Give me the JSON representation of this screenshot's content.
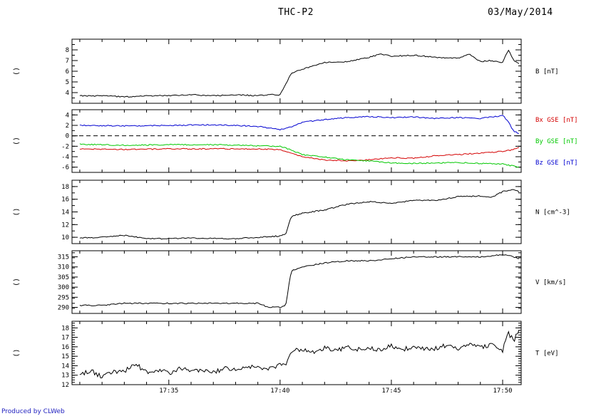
{
  "header": {
    "title": "THC-P2",
    "date": "03/May/2014"
  },
  "credit": "Produced by CLWeb",
  "chart_data": [
    {
      "type": "line",
      "panel": "B",
      "ylabel_right": "B [nT]",
      "left_label": "()",
      "ylim": [
        3,
        9
      ],
      "yticks": [
        4,
        5,
        6,
        7,
        8
      ],
      "hline": null,
      "series": [
        {
          "color": "#000000",
          "x": [
            "17:31",
            "17:32",
            "17:33",
            "17:34",
            "17:35",
            "17:36",
            "17:37",
            "17:38",
            "17:39",
            "17:39:30",
            "17:40",
            "17:40:15",
            "17:40:30",
            "17:41",
            "17:42",
            "17:43",
            "17:44",
            "17:44:30",
            "17:45",
            "17:46",
            "17:47",
            "17:48",
            "17:48:30",
            "17:49",
            "17:49:30",
            "17:50",
            "17:50:15",
            "17:50:30",
            "17:50:45"
          ],
          "values": [
            3.7,
            3.7,
            3.6,
            3.7,
            3.7,
            3.8,
            3.7,
            3.8,
            3.7,
            3.8,
            3.8,
            4.8,
            5.8,
            6.2,
            6.8,
            6.9,
            7.3,
            7.6,
            7.4,
            7.5,
            7.3,
            7.2,
            7.6,
            6.9,
            7.0,
            6.8,
            8.0,
            7.0,
            6.7
          ]
        }
      ]
    },
    {
      "type": "line",
      "panel": "B GSE",
      "left_label": "()",
      "ylim": [
        -7,
        5
      ],
      "yticks": [
        -6,
        -4,
        -2,
        0,
        2,
        4
      ],
      "hline": 0,
      "series": [
        {
          "name": "Bx GSE [nT]",
          "color": "#d40000",
          "x": [
            "17:31",
            "17:33",
            "17:35",
            "17:37",
            "17:39",
            "17:40",
            "17:40:30",
            "17:41",
            "17:42",
            "17:43",
            "17:44",
            "17:45",
            "17:46",
            "17:47",
            "17:48",
            "17:49",
            "17:50",
            "17:50:30",
            "17:50:45"
          ],
          "values": [
            -2.5,
            -2.6,
            -2.5,
            -2.5,
            -2.5,
            -2.6,
            -3.3,
            -4.0,
            -4.6,
            -4.8,
            -4.6,
            -4.2,
            -4.3,
            -3.8,
            -3.6,
            -3.3,
            -3.0,
            -2.6,
            -2.3
          ]
        },
        {
          "name": "By GSE [nT]",
          "color": "#00c800",
          "x": [
            "17:31",
            "17:33",
            "17:35",
            "17:37",
            "17:39",
            "17:40",
            "17:40:30",
            "17:41",
            "17:42",
            "17:43",
            "17:44",
            "17:45",
            "17:46",
            "17:47",
            "17:48",
            "17:49",
            "17:50",
            "17:50:30",
            "17:50:45"
          ],
          "values": [
            -1.6,
            -1.8,
            -1.7,
            -1.7,
            -1.9,
            -2.0,
            -2.7,
            -3.6,
            -4.1,
            -4.6,
            -4.8,
            -5.2,
            -5.3,
            -5.2,
            -5.1,
            -5.3,
            -5.4,
            -5.8,
            -6.0
          ]
        },
        {
          "name": "Bz GSE [nT]",
          "color": "#0000d0",
          "x": [
            "17:31",
            "17:33",
            "17:35",
            "17:37",
            "17:38",
            "17:39",
            "17:40",
            "17:40:30",
            "17:41",
            "17:42",
            "17:43",
            "17:44",
            "17:45",
            "17:46",
            "17:47",
            "17:48",
            "17:49",
            "17:50",
            "17:50:15",
            "17:50:30",
            "17:50:45"
          ],
          "values": [
            2.0,
            1.9,
            2.0,
            2.1,
            2.0,
            1.8,
            1.2,
            1.7,
            2.6,
            3.1,
            3.5,
            3.7,
            3.5,
            3.6,
            3.3,
            3.5,
            3.3,
            3.9,
            2.8,
            0.8,
            0.5
          ]
        }
      ]
    },
    {
      "type": "line",
      "panel": "N",
      "ylabel_right": "N [cm^-3]",
      "left_label": "()",
      "ylim": [
        9,
        19
      ],
      "yticks": [
        10,
        12,
        14,
        16,
        18
      ],
      "hline": null,
      "series": [
        {
          "color": "#000000",
          "x": [
            "17:31",
            "17:32",
            "17:33",
            "17:34",
            "17:35",
            "17:36",
            "17:37",
            "17:38",
            "17:39",
            "17:40",
            "17:40:15",
            "17:40:30",
            "17:41",
            "17:42",
            "17:43",
            "17:44",
            "17:45",
            "17:46",
            "17:47",
            "17:48",
            "17:49",
            "17:49:30",
            "17:50",
            "17:50:30",
            "17:50:45"
          ],
          "values": [
            9.9,
            10.0,
            10.3,
            9.8,
            9.8,
            9.9,
            9.8,
            9.8,
            10.0,
            10.2,
            10.5,
            13.3,
            13.8,
            14.3,
            15.2,
            15.6,
            15.4,
            15.8,
            15.8,
            16.4,
            16.5,
            16.3,
            17.2,
            17.6,
            17.1
          ]
        }
      ]
    },
    {
      "type": "line",
      "panel": "V",
      "ylabel_right": "V [km/s]",
      "left_label": "()",
      "ylim": [
        287,
        318
      ],
      "yticks": [
        290,
        295,
        300,
        305,
        310,
        315
      ],
      "hline": null,
      "series": [
        {
          "color": "#000000",
          "x": [
            "17:31",
            "17:32",
            "17:33",
            "17:34",
            "17:35",
            "17:36",
            "17:37",
            "17:38",
            "17:39",
            "17:39:30",
            "17:40",
            "17:40:15",
            "17:40:30",
            "17:41",
            "17:42",
            "17:43",
            "17:44",
            "17:45",
            "17:46",
            "17:47",
            "17:48",
            "17:49",
            "17:50",
            "17:50:30",
            "17:50:45"
          ],
          "values": [
            291,
            291,
            292,
            292,
            292,
            292,
            292,
            292,
            292,
            290,
            290,
            291,
            308,
            310,
            312,
            313,
            313,
            314,
            315,
            315,
            315,
            315,
            316,
            315,
            314
          ]
        }
      ]
    },
    {
      "type": "line",
      "panel": "T",
      "ylabel_right": "T [eV]",
      "left_label": "()",
      "ylim": [
        12,
        18.7
      ],
      "yticks": [
        12,
        13,
        14,
        15,
        16,
        17,
        18
      ],
      "hline": null,
      "series": [
        {
          "color": "#000000",
          "x": [
            "17:31",
            "17:31:30",
            "17:32",
            "17:32:30",
            "17:33",
            "17:33:30",
            "17:34",
            "17:34:30",
            "17:35",
            "17:35:30",
            "17:36",
            "17:36:30",
            "17:37",
            "17:37:30",
            "17:38",
            "17:38:30",
            "17:39",
            "17:39:30",
            "17:40",
            "17:40:15",
            "17:40:30",
            "17:41",
            "17:41:30",
            "17:42",
            "17:42:30",
            "17:43",
            "17:43:30",
            "17:44",
            "17:44:30",
            "17:45",
            "17:45:30",
            "17:46",
            "17:46:30",
            "17:47",
            "17:47:30",
            "17:48",
            "17:48:30",
            "17:49",
            "17:49:30",
            "17:50",
            "17:50:15",
            "17:50:30",
            "17:50:45"
          ],
          "values": [
            13.0,
            13.5,
            12.8,
            13.3,
            13.4,
            14.2,
            13.3,
            13.6,
            13.2,
            13.8,
            13.4,
            13.5,
            13.3,
            13.7,
            13.6,
            14.0,
            13.8,
            13.7,
            14.1,
            13.9,
            15.6,
            15.7,
            15.4,
            15.9,
            15.6,
            16.0,
            15.7,
            15.9,
            15.6,
            16.1,
            15.7,
            16.0,
            15.7,
            15.8,
            16.2,
            15.7,
            16.2,
            15.9,
            16.2,
            15.6,
            17.5,
            16.6,
            18.0
          ]
        }
      ]
    }
  ],
  "x_axis": {
    "start": "17:31",
    "end": "17:50:45",
    "tick_labels": [
      "17:35",
      "17:40",
      "17:45",
      "17:50"
    ]
  }
}
